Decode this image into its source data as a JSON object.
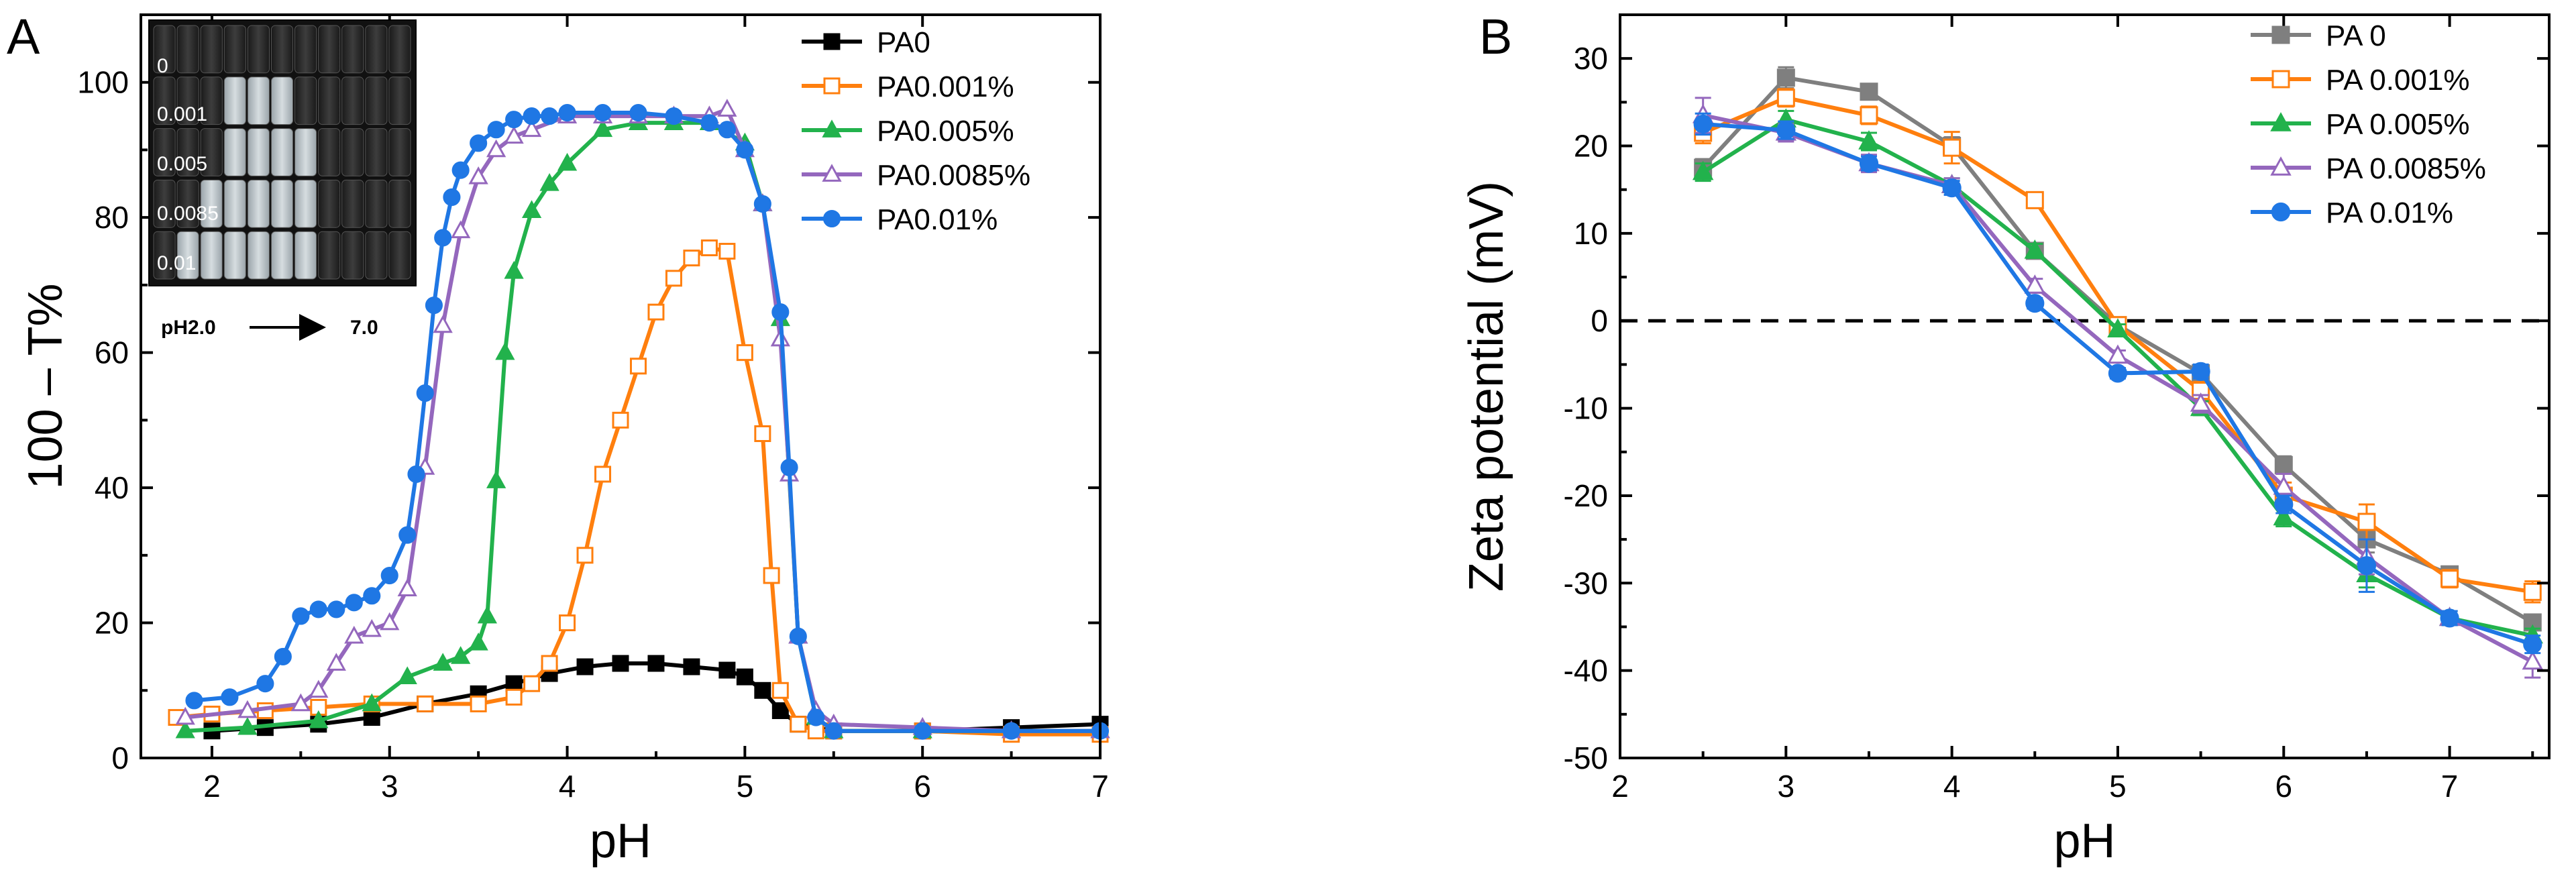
{
  "panel_a_letter": "A",
  "panel_b_letter": "B",
  "inset": {
    "row_labels": [
      "0",
      "0.001",
      "0.005",
      "0.0085",
      "0.01"
    ],
    "ph_start": "pH2.0",
    "ph_end": "7.0"
  },
  "chart_data": [
    {
      "type": "line",
      "panel": "A",
      "xlabel": "pH",
      "ylabel": "100 – T%",
      "xlim": [
        1.6,
        7.0
      ],
      "ylim": [
        0,
        110
      ],
      "xticks": [
        2,
        3,
        4,
        5,
        6,
        7
      ],
      "yticks": [
        0,
        20,
        40,
        60,
        80,
        100
      ],
      "legend_position": "top-right",
      "series": [
        {
          "name": "PA0",
          "color": "#000000",
          "marker": "square-filled",
          "x": [
            2.0,
            2.3,
            2.6,
            2.9,
            3.2,
            3.5,
            3.7,
            3.9,
            4.1,
            4.3,
            4.5,
            4.7,
            4.9,
            5.0,
            5.1,
            5.2,
            5.3,
            5.5,
            6.0,
            6.5,
            7.0
          ],
          "y": [
            4,
            4.5,
            5,
            6,
            8,
            9.5,
            11,
            12.5,
            13.5,
            14,
            14,
            13.5,
            13,
            12,
            10,
            7,
            5,
            4,
            4,
            4.5,
            5
          ]
        },
        {
          "name": "PA0.001%",
          "color": "#ff7f0e",
          "marker": "square-open",
          "x": [
            1.8,
            2.0,
            2.3,
            2.6,
            2.9,
            3.2,
            3.5,
            3.7,
            3.8,
            3.9,
            4.0,
            4.1,
            4.2,
            4.3,
            4.4,
            4.5,
            4.6,
            4.7,
            4.8,
            4.9,
            5.0,
            5.1,
            5.15,
            5.2,
            5.3,
            5.4,
            5.5,
            6.0,
            6.5,
            7.0
          ],
          "y": [
            6,
            6.5,
            7,
            7.5,
            8,
            8,
            8,
            9,
            11,
            14,
            20,
            30,
            42,
            50,
            58,
            66,
            71,
            74,
            75.5,
            75,
            60,
            48,
            27,
            10,
            5,
            4,
            4,
            4,
            3.5,
            3.5
          ]
        },
        {
          "name": "PA0.005%",
          "color": "#22b24c",
          "marker": "triangle-filled",
          "x": [
            1.85,
            2.2,
            2.6,
            2.9,
            3.1,
            3.3,
            3.4,
            3.5,
            3.55,
            3.6,
            3.65,
            3.7,
            3.8,
            3.9,
            4.0,
            4.2,
            4.4,
            4.6,
            4.8,
            5.0,
            5.1,
            5.2,
            5.3,
            5.4,
            5.5,
            6.0,
            6.5,
            7.0
          ],
          "y": [
            4,
            4.5,
            5.5,
            8,
            12,
            14,
            15,
            17,
            21,
            41,
            60,
            72,
            81,
            85,
            88,
            93,
            94,
            94,
            94,
            91,
            82,
            65,
            18,
            6,
            4,
            4,
            4,
            4
          ]
        },
        {
          "name": "PA0.0085%",
          "color": "#9467bd",
          "marker": "triangle-open",
          "x": [
            1.85,
            2.2,
            2.5,
            2.6,
            2.7,
            2.8,
            2.9,
            3.0,
            3.1,
            3.2,
            3.3,
            3.4,
            3.5,
            3.6,
            3.7,
            3.8,
            4.0,
            4.2,
            4.4,
            4.6,
            4.8,
            4.9,
            5.0,
            5.1,
            5.2,
            5.25,
            5.3,
            5.4,
            5.5,
            6.0,
            6.5,
            7.0
          ],
          "y": [
            6,
            7,
            8,
            10,
            14,
            18,
            19,
            20,
            25,
            43,
            64,
            78,
            86,
            90,
            92,
            93,
            95,
            95,
            95,
            95,
            95,
            96,
            90,
            82,
            62,
            42,
            18,
            7,
            5,
            4.5,
            4,
            4
          ]
        },
        {
          "name": "PA0.01%",
          "color": "#1f77e4",
          "marker": "circle-filled",
          "x": [
            1.9,
            2.1,
            2.3,
            2.4,
            2.5,
            2.6,
            2.7,
            2.8,
            2.9,
            3.0,
            3.1,
            3.15,
            3.2,
            3.25,
            3.3,
            3.35,
            3.4,
            3.5,
            3.6,
            3.7,
            3.8,
            3.9,
            4.0,
            4.2,
            4.4,
            4.6,
            4.8,
            4.9,
            5.0,
            5.1,
            5.2,
            5.25,
            5.3,
            5.4,
            5.5,
            6.0,
            6.5,
            7.0
          ],
          "y": [
            8.5,
            9,
            11,
            15,
            21,
            22,
            22,
            23,
            24,
            27,
            33,
            42,
            54,
            67,
            77,
            83,
            87,
            91,
            93,
            94.5,
            95,
            95,
            95.5,
            95.5,
            95.5,
            95,
            94,
            93,
            90,
            82,
            66,
            43,
            18,
            6,
            4,
            4,
            4,
            4
          ]
        }
      ]
    },
    {
      "type": "line",
      "panel": "B",
      "xlabel": "pH",
      "ylabel": "Zeta potential (mV)",
      "xlim": [
        2.0,
        7.6
      ],
      "ylim": [
        -50,
        35
      ],
      "xticks": [
        2,
        3,
        4,
        5,
        6,
        7
      ],
      "yticks": [
        -50,
        -40,
        -30,
        -20,
        -10,
        0,
        10,
        20,
        30
      ],
      "reference_line": 0,
      "legend_position": "top-right",
      "x": [
        2.5,
        3.0,
        3.5,
        4.0,
        4.5,
        5.0,
        5.5,
        6.0,
        6.5,
        7.0,
        7.5
      ],
      "series": [
        {
          "name": "PA 0",
          "color": "#7f7f7f",
          "marker": "square-filled",
          "values": [
            17.5,
            27.8,
            26.2,
            20.0,
            8.0,
            -0.5,
            -6.0,
            -16.5,
            -25.0,
            -29.0,
            -34.5
          ],
          "errors": [
            1.0,
            1.2,
            0.8,
            1.0,
            0.8,
            0.6,
            0.8,
            1.0,
            1.5,
            0.8,
            0.8
          ]
        },
        {
          "name": "PA 0.001%",
          "color": "#ff7f0e",
          "marker": "square-open",
          "values": [
            21.5,
            25.5,
            23.5,
            19.8,
            13.8,
            -0.5,
            -8.0,
            -20.0,
            -23.0,
            -29.5,
            -31.0
          ],
          "errors": [
            1.2,
            1.0,
            1.0,
            1.8,
            0.8,
            0.6,
            1.0,
            1.5,
            2.0,
            1.0,
            1.2
          ]
        },
        {
          "name": "PA 0.005%",
          "color": "#22b24c",
          "marker": "triangle-filled",
          "values": [
            17.0,
            23.0,
            20.5,
            15.5,
            8.0,
            -1.0,
            -10.0,
            -22.5,
            -29.0,
            -34.0,
            -36.0
          ],
          "errors": [
            1.0,
            1.0,
            1.0,
            0.8,
            0.8,
            0.6,
            0.8,
            1.0,
            1.5,
            0.8,
            0.8
          ]
        },
        {
          "name": "PA 0.0085%",
          "color": "#9467bd",
          "marker": "triangle-open",
          "values": [
            23.5,
            21.5,
            18.0,
            15.5,
            4.0,
            -4.0,
            -9.5,
            -19.0,
            -27.0,
            -34.0,
            -39.0
          ],
          "errors": [
            2.0,
            1.0,
            1.0,
            0.8,
            0.8,
            0.6,
            1.0,
            1.5,
            2.0,
            0.8,
            1.8
          ]
        },
        {
          "name": "PA 0.01%",
          "color": "#1f77e4",
          "marker": "circle-filled",
          "values": [
            22.5,
            21.8,
            18.0,
            15.2,
            2.0,
            -6.0,
            -5.8,
            -21.0,
            -28.0,
            -34.0,
            -37.0
          ],
          "errors": [
            1.2,
            1.0,
            0.8,
            0.8,
            0.6,
            0.6,
            0.8,
            1.0,
            3.0,
            0.8,
            1.0
          ]
        }
      ]
    }
  ]
}
